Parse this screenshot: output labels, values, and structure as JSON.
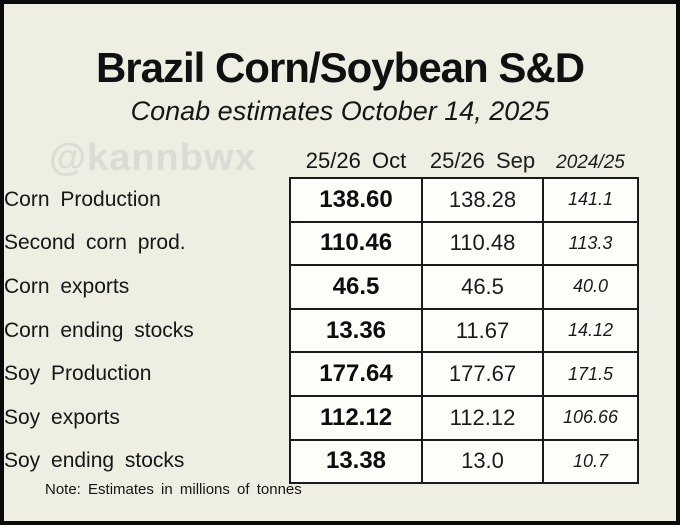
{
  "page": {
    "watermark": "@kannbwx"
  },
  "colors": {
    "background": "#eeeee3",
    "cell_background": "#fdfdfa",
    "frame_border": "#0a0a0a",
    "grid_border": "#1b1b1b",
    "watermark_text": "#dcdcd4",
    "text": "#141414"
  },
  "chart_data": {
    "type": "table",
    "title": "Brazil Corn/Soybean S&D",
    "subtitle": "Conab estimates October 14, 2025",
    "columns": [
      "25/26 Oct",
      "25/26 Sep",
      "2024/25"
    ],
    "rows": [
      {
        "label": "Corn Production",
        "values": [
          "138.60",
          "138.28",
          "141.1"
        ]
      },
      {
        "label": "Second corn prod.",
        "values": [
          "110.46",
          "110.48",
          "113.3"
        ]
      },
      {
        "label": "Corn exports",
        "values": [
          "46.5",
          "46.5",
          "40.0"
        ]
      },
      {
        "label": "Corn ending stocks",
        "values": [
          "13.36",
          "11.67",
          "14.12"
        ]
      },
      {
        "label": "Soy Production",
        "values": [
          "177.64",
          "177.67",
          "171.5"
        ]
      },
      {
        "label": "Soy exports",
        "values": [
          "112.12",
          "112.12",
          "106.66"
        ]
      },
      {
        "label": "Soy ending stocks",
        "values": [
          "13.38",
          "13.0",
          "10.7"
        ]
      }
    ],
    "note": "Note: Estimates in millions of tonnes",
    "units": "millions of tonnes",
    "layout": {
      "grid": "on",
      "value_columns_boxed": true,
      "legend_position": "none"
    }
  }
}
